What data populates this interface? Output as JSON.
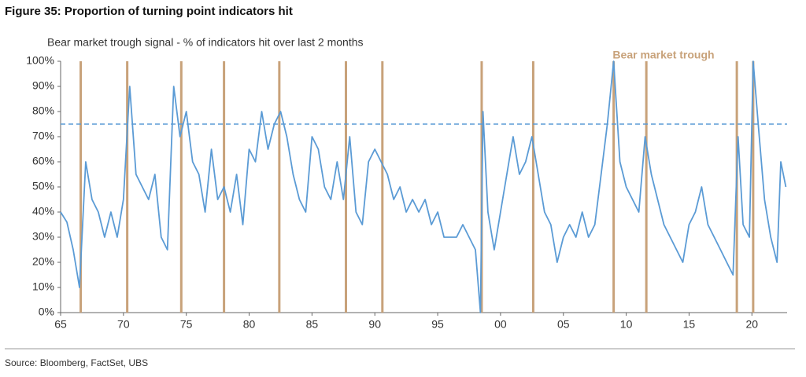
{
  "chart_data": {
    "type": "line",
    "title": "Figure 35: Proportion of turning point indicators hit",
    "subtitle": "Bear market trough signal - % of indicators hit over last 2 months",
    "source": "Source: Bloomberg, FactSet, UBS",
    "annotation": "Bear market trough",
    "x": [
      1965,
      1965.5,
      1966,
      1966.5,
      1967,
      1967.5,
      1968,
      1968.5,
      1969,
      1969.5,
      1970,
      1970.5,
      1971,
      1971.5,
      1972,
      1972.5,
      1973,
      1973.5,
      1974,
      1974.5,
      1975,
      1975.5,
      1976,
      1976.5,
      1977,
      1977.5,
      1978,
      1978.5,
      1979,
      1979.5,
      1980,
      1980.5,
      1981,
      1981.5,
      1982,
      1982.5,
      1983,
      1983.5,
      1984,
      1984.5,
      1985,
      1985.5,
      1986,
      1986.5,
      1987,
      1987.5,
      1988,
      1988.5,
      1989,
      1989.5,
      1990,
      1990.5,
      1991,
      1991.5,
      1992,
      1992.5,
      1993,
      1993.5,
      1994,
      1994.5,
      1995,
      1995.5,
      1996,
      1996.5,
      1997,
      1997.5,
      1998,
      1998.4,
      1998.6,
      1999,
      1999.5,
      2000,
      2000.5,
      2001,
      2001.5,
      2002,
      2002.5,
      2003,
      2003.5,
      2004,
      2004.5,
      2005,
      2005.5,
      2006,
      2006.5,
      2007,
      2007.5,
      2008,
      2008.5,
      2009,
      2009.5,
      2010,
      2010.5,
      2011,
      2011.5,
      2012,
      2012.5,
      2013,
      2013.5,
      2014,
      2014.5,
      2015,
      2015.5,
      2016,
      2016.5,
      2017,
      2017.5,
      2018,
      2018.5,
      2018.9,
      2019.3,
      2019.8,
      2020.1,
      2020.5,
      2021,
      2021.5,
      2022,
      2022.3,
      2022.7
    ],
    "series": [
      {
        "name": "Bear market trough signal",
        "color": "#5b9bd5",
        "values": [
          40,
          36,
          25,
          10,
          60,
          45,
          40,
          30,
          40,
          30,
          45,
          90,
          55,
          50,
          45,
          55,
          30,
          25,
          90,
          70,
          80,
          60,
          55,
          40,
          65,
          45,
          50,
          40,
          55,
          35,
          65,
          60,
          80,
          65,
          75,
          80,
          70,
          55,
          45,
          40,
          70,
          65,
          50,
          45,
          60,
          45,
          70,
          40,
          35,
          60,
          65,
          60,
          55,
          45,
          50,
          40,
          45,
          40,
          45,
          35,
          40,
          30,
          30,
          30,
          35,
          30,
          25,
          0,
          80,
          40,
          25,
          40,
          55,
          70,
          55,
          60,
          70,
          55,
          40,
          35,
          20,
          30,
          35,
          30,
          40,
          30,
          35,
          55,
          75,
          100,
          60,
          50,
          45,
          40,
          70,
          55,
          45,
          35,
          30,
          25,
          20,
          35,
          40,
          50,
          35,
          30,
          25,
          20,
          15,
          70,
          35,
          30,
          100,
          75,
          45,
          30,
          20,
          60,
          50
        ]
      }
    ],
    "troughs": [
      1966.6,
      1970.3,
      1974.6,
      1978.0,
      1982.4,
      1987.7,
      1990.6,
      1998.5,
      2002.6,
      2009.0,
      2011.6,
      2018.8,
      2020.1
    ],
    "trough_color": "#c8a27a",
    "threshold": 75,
    "threshold_color": "#5b9bd5",
    "xlim": [
      1965,
      2022.8
    ],
    "ylim": [
      0,
      100
    ],
    "xticks": [
      {
        "value": 1965,
        "label": "65"
      },
      {
        "value": 1970,
        "label": "70"
      },
      {
        "value": 1975,
        "label": "75"
      },
      {
        "value": 1980,
        "label": "80"
      },
      {
        "value": 1985,
        "label": "85"
      },
      {
        "value": 1990,
        "label": "90"
      },
      {
        "value": 1995,
        "label": "95"
      },
      {
        "value": 2000,
        "label": "00"
      },
      {
        "value": 2005,
        "label": "05"
      },
      {
        "value": 2010,
        "label": "10"
      },
      {
        "value": 2015,
        "label": "15"
      },
      {
        "value": 2020,
        "label": "20"
      }
    ],
    "yticks": [
      {
        "value": 0,
        "label": "0%"
      },
      {
        "value": 10,
        "label": "10%"
      },
      {
        "value": 20,
        "label": "20%"
      },
      {
        "value": 30,
        "label": "30%"
      },
      {
        "value": 40,
        "label": "40%"
      },
      {
        "value": 50,
        "label": "50%"
      },
      {
        "value": 60,
        "label": "60%"
      },
      {
        "value": 70,
        "label": "70%"
      },
      {
        "value": 80,
        "label": "80%"
      },
      {
        "value": 90,
        "label": "90%"
      },
      {
        "value": 100,
        "label": "100%"
      }
    ]
  }
}
